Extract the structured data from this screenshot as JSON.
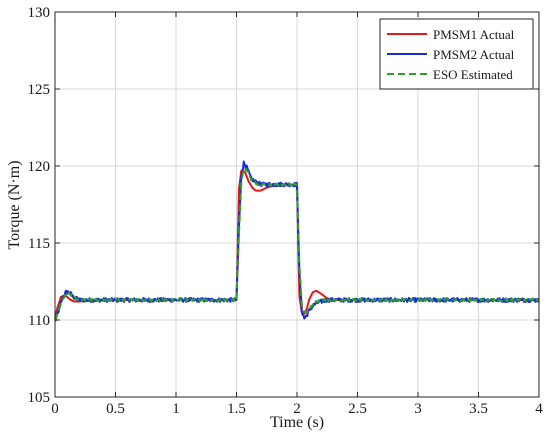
{
  "chart_data": {
    "type": "line",
    "xlabel": "Time (s)",
    "ylabel": "Torque (N·m)",
    "xlim": [
      0,
      4
    ],
    "ylim": [
      105,
      130
    ],
    "x_ticks": [
      0,
      0.5,
      1,
      1.5,
      2,
      2.5,
      3,
      3.5,
      4
    ],
    "x_tick_labels": [
      "0",
      "0.5",
      "1",
      "1.5",
      "2",
      "2.5",
      "3",
      "3.5",
      "4"
    ],
    "y_ticks": [
      105,
      110,
      115,
      120,
      125,
      130
    ],
    "y_tick_labels": [
      "105",
      "110",
      "115",
      "120",
      "125",
      "130"
    ],
    "grid": true,
    "legend_position": "top-right",
    "series": [
      {
        "name": "PMSM1 Actual",
        "color": "#e31a1c",
        "dash": "solid",
        "x": [
          0,
          0.02,
          0.05,
          0.08,
          0.1,
          0.13,
          0.16,
          0.2,
          0.3,
          0.5,
          1.0,
          1.4,
          1.5,
          1.51,
          1.52,
          1.54,
          1.57,
          1.6,
          1.63,
          1.66,
          1.7,
          1.75,
          1.8,
          1.9,
          1.99,
          2.0,
          2.01,
          2.02,
          2.04,
          2.06,
          2.08,
          2.1,
          2.13,
          2.16,
          2.2,
          2.25,
          2.3,
          2.4,
          2.6,
          3.0,
          3.5,
          4.0
        ],
        "y": [
          110.1,
          110.8,
          111.5,
          111.6,
          111.5,
          111.3,
          111.2,
          111.2,
          111.25,
          111.3,
          111.3,
          111.3,
          111.3,
          114.5,
          118.5,
          119.7,
          119.6,
          119.0,
          118.6,
          118.4,
          118.4,
          118.6,
          118.7,
          118.8,
          118.8,
          118.8,
          115.0,
          111.5,
          110.5,
          110.4,
          110.7,
          111.3,
          111.8,
          111.9,
          111.7,
          111.4,
          111.3,
          111.3,
          111.3,
          111.3,
          111.3,
          111.3
        ]
      },
      {
        "name": "PMSM2 Actual",
        "color": "#1c2bd8",
        "dash": "solid",
        "x": [
          0,
          0.03,
          0.06,
          0.09,
          0.12,
          0.15,
          0.2,
          0.3,
          0.5,
          1.0,
          1.49,
          1.5,
          1.52,
          1.54,
          1.56,
          1.58,
          1.6,
          1.62,
          1.65,
          1.7,
          1.75,
          1.8,
          1.9,
          1.99,
          2.0,
          2.02,
          2.04,
          2.06,
          2.08,
          2.1,
          2.13,
          2.16,
          2.2,
          2.25,
          2.3,
          2.4,
          2.6,
          3.0,
          3.5,
          4.0
        ],
        "y": [
          109.9,
          110.6,
          111.4,
          111.8,
          111.8,
          111.5,
          111.3,
          111.3,
          111.3,
          111.3,
          111.3,
          111.3,
          116.0,
          119.4,
          120.2,
          120.0,
          119.6,
          119.2,
          119.0,
          118.8,
          118.8,
          118.8,
          118.8,
          118.8,
          118.8,
          113.0,
          110.6,
          110.1,
          110.3,
          110.6,
          110.9,
          111.1,
          111.2,
          111.3,
          111.3,
          111.3,
          111.3,
          111.3,
          111.3,
          111.3
        ],
        "noise": 0.13
      },
      {
        "name": "ESO Estimated",
        "color": "#2ca02c",
        "dash": "dashed",
        "x": [
          0,
          0.03,
          0.06,
          0.09,
          0.12,
          0.15,
          0.2,
          0.3,
          0.5,
          1.0,
          1.49,
          1.5,
          1.52,
          1.54,
          1.56,
          1.58,
          1.6,
          1.62,
          1.65,
          1.7,
          1.75,
          1.8,
          1.9,
          1.99,
          2.0,
          2.02,
          2.04,
          2.06,
          2.08,
          2.1,
          2.13,
          2.16,
          2.2,
          2.25,
          2.3,
          2.4,
          2.6,
          3.0,
          3.5,
          4.0
        ],
        "y": [
          110.0,
          110.6,
          111.3,
          111.7,
          111.7,
          111.5,
          111.3,
          111.3,
          111.3,
          111.3,
          111.3,
          111.3,
          115.5,
          119.0,
          119.8,
          119.8,
          119.5,
          119.1,
          118.9,
          118.8,
          118.8,
          118.8,
          118.8,
          118.8,
          118.8,
          113.5,
          111.0,
          110.5,
          110.5,
          110.7,
          111.0,
          111.2,
          111.3,
          111.3,
          111.3,
          111.3,
          111.3,
          111.3,
          111.3,
          111.3
        ],
        "noise": 0.07
      }
    ]
  }
}
